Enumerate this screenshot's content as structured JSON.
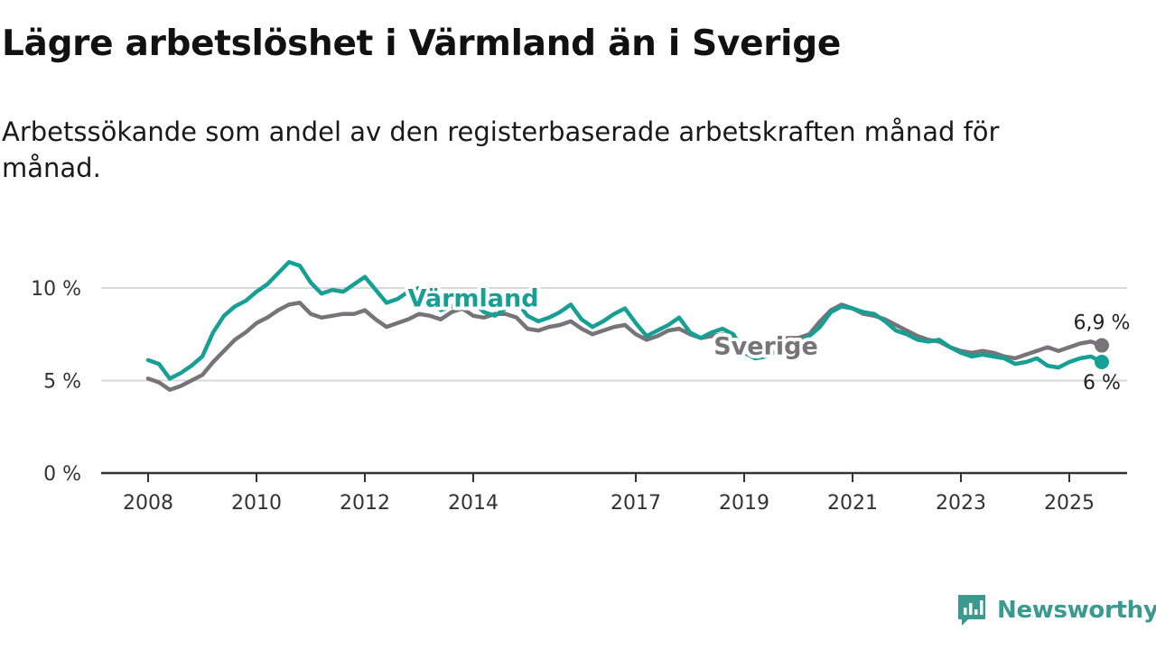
{
  "title": "Lägre arbetslöshet i Värmland än i Sverige",
  "subtitle": "Arbetssökande som andel av den registerbaserade arbetskraften månad för månad.",
  "brand": {
    "name": "Newsworthy",
    "icon": "newsworthy-logo-icon",
    "color": "#3a9a90"
  },
  "chart_data": {
    "type": "line",
    "x_ticks": [
      "2008",
      "2010",
      "2012",
      "2014",
      "2017",
      "2019",
      "2021",
      "2023",
      "2025"
    ],
    "y_ticks": [
      {
        "value": 0,
        "label": "0 %"
      },
      {
        "value": 5,
        "label": "5 %"
      },
      {
        "value": 10,
        "label": "10 %"
      }
    ],
    "ylim": [
      0,
      12
    ],
    "xlim": [
      2007.2,
      2026.3
    ],
    "grid": true,
    "series": [
      {
        "name": "Sverige",
        "color": "#767479",
        "end_label": "6,9 %",
        "points": [
          [
            2008.0,
            5.1
          ],
          [
            2008.2,
            4.9
          ],
          [
            2008.4,
            4.5
          ],
          [
            2008.6,
            4.7
          ],
          [
            2008.8,
            5.0
          ],
          [
            2009.0,
            5.3
          ],
          [
            2009.2,
            6.0
          ],
          [
            2009.4,
            6.6
          ],
          [
            2009.6,
            7.2
          ],
          [
            2009.8,
            7.6
          ],
          [
            2010.0,
            8.1
          ],
          [
            2010.2,
            8.4
          ],
          [
            2010.4,
            8.8
          ],
          [
            2010.6,
            9.1
          ],
          [
            2010.8,
            9.2
          ],
          [
            2011.0,
            8.6
          ],
          [
            2011.2,
            8.4
          ],
          [
            2011.4,
            8.5
          ],
          [
            2011.6,
            8.6
          ],
          [
            2011.8,
            8.6
          ],
          [
            2012.0,
            8.8
          ],
          [
            2012.2,
            8.3
          ],
          [
            2012.4,
            7.9
          ],
          [
            2012.6,
            8.1
          ],
          [
            2012.8,
            8.3
          ],
          [
            2013.0,
            8.6
          ],
          [
            2013.2,
            8.5
          ],
          [
            2013.4,
            8.3
          ],
          [
            2013.6,
            8.7
          ],
          [
            2013.8,
            8.9
          ],
          [
            2014.0,
            8.5
          ],
          [
            2014.2,
            8.4
          ],
          [
            2014.4,
            8.6
          ],
          [
            2014.6,
            8.6
          ],
          [
            2014.8,
            8.4
          ],
          [
            2015.0,
            7.8
          ],
          [
            2015.2,
            7.7
          ],
          [
            2015.4,
            7.9
          ],
          [
            2015.6,
            8.0
          ],
          [
            2015.8,
            8.2
          ],
          [
            2016.0,
            7.8
          ],
          [
            2016.2,
            7.5
          ],
          [
            2016.4,
            7.7
          ],
          [
            2016.6,
            7.9
          ],
          [
            2016.8,
            8.0
          ],
          [
            2017.0,
            7.5
          ],
          [
            2017.2,
            7.2
          ],
          [
            2017.4,
            7.4
          ],
          [
            2017.6,
            7.7
          ],
          [
            2017.8,
            7.8
          ],
          [
            2018.0,
            7.5
          ],
          [
            2018.2,
            7.3
          ],
          [
            2018.4,
            7.4
          ],
          [
            2018.6,
            7.5
          ],
          [
            2018.8,
            7.4
          ],
          [
            2019.0,
            6.8
          ],
          [
            2019.2,
            6.7
          ],
          [
            2019.4,
            6.9
          ],
          [
            2019.6,
            7.1
          ],
          [
            2019.8,
            7.3
          ],
          [
            2020.0,
            7.3
          ],
          [
            2020.2,
            7.5
          ],
          [
            2020.4,
            8.2
          ],
          [
            2020.6,
            8.8
          ],
          [
            2020.8,
            9.1
          ],
          [
            2021.0,
            8.9
          ],
          [
            2021.2,
            8.6
          ],
          [
            2021.4,
            8.5
          ],
          [
            2021.6,
            8.3
          ],
          [
            2021.8,
            8.0
          ],
          [
            2022.0,
            7.7
          ],
          [
            2022.2,
            7.4
          ],
          [
            2022.4,
            7.2
          ],
          [
            2022.6,
            7.1
          ],
          [
            2022.8,
            6.8
          ],
          [
            2023.0,
            6.6
          ],
          [
            2023.2,
            6.5
          ],
          [
            2023.4,
            6.6
          ],
          [
            2023.6,
            6.5
          ],
          [
            2023.8,
            6.3
          ],
          [
            2024.0,
            6.2
          ],
          [
            2024.2,
            6.4
          ],
          [
            2024.4,
            6.6
          ],
          [
            2024.6,
            6.8
          ],
          [
            2024.8,
            6.6
          ],
          [
            2025.0,
            6.8
          ],
          [
            2025.2,
            7.0
          ],
          [
            2025.4,
            7.1
          ],
          [
            2025.6,
            6.9
          ]
        ]
      },
      {
        "name": "Värmland",
        "color": "#169f94",
        "end_label": "6 %",
        "points": [
          [
            2008.0,
            6.1
          ],
          [
            2008.2,
            5.9
          ],
          [
            2008.4,
            5.1
          ],
          [
            2008.6,
            5.4
          ],
          [
            2008.8,
            5.8
          ],
          [
            2009.0,
            6.3
          ],
          [
            2009.2,
            7.6
          ],
          [
            2009.4,
            8.5
          ],
          [
            2009.6,
            9.0
          ],
          [
            2009.8,
            9.3
          ],
          [
            2010.0,
            9.8
          ],
          [
            2010.2,
            10.2
          ],
          [
            2010.4,
            10.8
          ],
          [
            2010.6,
            11.4
          ],
          [
            2010.8,
            11.2
          ],
          [
            2011.0,
            10.3
          ],
          [
            2011.2,
            9.7
          ],
          [
            2011.4,
            9.9
          ],
          [
            2011.6,
            9.8
          ],
          [
            2011.8,
            10.2
          ],
          [
            2012.0,
            10.6
          ],
          [
            2012.2,
            9.9
          ],
          [
            2012.4,
            9.2
          ],
          [
            2012.6,
            9.4
          ],
          [
            2012.8,
            9.8
          ],
          [
            2013.0,
            10.0
          ],
          [
            2013.2,
            9.4
          ],
          [
            2013.4,
            8.8
          ],
          [
            2013.6,
            9.0
          ],
          [
            2013.8,
            9.5
          ],
          [
            2014.0,
            9.2
          ],
          [
            2014.2,
            8.7
          ],
          [
            2014.4,
            8.5
          ],
          [
            2014.6,
            8.9
          ],
          [
            2014.8,
            9.3
          ],
          [
            2015.0,
            8.5
          ],
          [
            2015.2,
            8.2
          ],
          [
            2015.4,
            8.4
          ],
          [
            2015.6,
            8.7
          ],
          [
            2015.8,
            9.1
          ],
          [
            2016.0,
            8.3
          ],
          [
            2016.2,
            7.9
          ],
          [
            2016.4,
            8.2
          ],
          [
            2016.6,
            8.6
          ],
          [
            2016.8,
            8.9
          ],
          [
            2017.0,
            8.1
          ],
          [
            2017.2,
            7.4
          ],
          [
            2017.4,
            7.7
          ],
          [
            2017.6,
            8.0
          ],
          [
            2017.8,
            8.4
          ],
          [
            2018.0,
            7.6
          ],
          [
            2018.2,
            7.3
          ],
          [
            2018.4,
            7.6
          ],
          [
            2018.6,
            7.8
          ],
          [
            2018.8,
            7.5
          ],
          [
            2019.0,
            6.5
          ],
          [
            2019.2,
            6.2
          ],
          [
            2019.4,
            6.3
          ],
          [
            2019.6,
            6.6
          ],
          [
            2019.8,
            6.9
          ],
          [
            2020.0,
            7.0
          ],
          [
            2020.2,
            7.4
          ],
          [
            2020.4,
            7.9
          ],
          [
            2020.6,
            8.7
          ],
          [
            2020.8,
            9.0
          ],
          [
            2021.0,
            8.9
          ],
          [
            2021.2,
            8.7
          ],
          [
            2021.4,
            8.6
          ],
          [
            2021.6,
            8.2
          ],
          [
            2021.8,
            7.7
          ],
          [
            2022.0,
            7.5
          ],
          [
            2022.2,
            7.2
          ],
          [
            2022.4,
            7.1
          ],
          [
            2022.6,
            7.2
          ],
          [
            2022.8,
            6.8
          ],
          [
            2023.0,
            6.5
          ],
          [
            2023.2,
            6.3
          ],
          [
            2023.4,
            6.4
          ],
          [
            2023.6,
            6.3
          ],
          [
            2023.8,
            6.2
          ],
          [
            2024.0,
            5.9
          ],
          [
            2024.2,
            6.0
          ],
          [
            2024.4,
            6.2
          ],
          [
            2024.6,
            5.8
          ],
          [
            2024.8,
            5.7
          ],
          [
            2025.0,
            6.0
          ],
          [
            2025.2,
            6.2
          ],
          [
            2025.4,
            6.3
          ],
          [
            2025.6,
            6.0
          ]
        ]
      }
    ]
  }
}
